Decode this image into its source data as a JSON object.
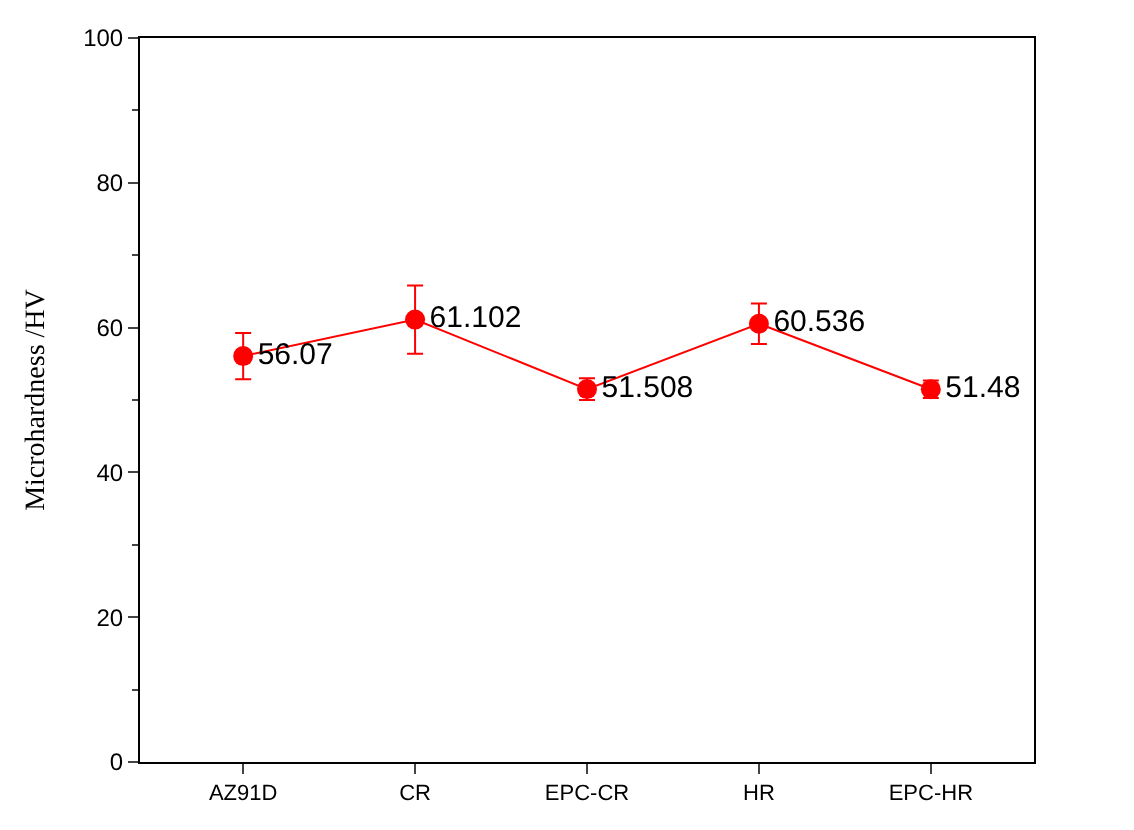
{
  "chart_data": {
    "type": "line",
    "ylabel": "Microhardness /HV",
    "categories": [
      "AZ91D",
      "CR",
      "EPC-CR",
      "HR",
      "EPC-HR"
    ],
    "series": [
      {
        "color": "#ff0000",
        "values": [
          56.07,
          61.102,
          51.508,
          60.536,
          51.48
        ],
        "errors": [
          3.2,
          4.7,
          1.5,
          2.8,
          1.2
        ]
      }
    ],
    "ylim": [
      0,
      100
    ],
    "yticks": [
      0,
      20,
      40,
      60,
      80,
      100
    ],
    "data_labels": true,
    "marker": "circle",
    "line_style": "solid",
    "legend": false
  }
}
